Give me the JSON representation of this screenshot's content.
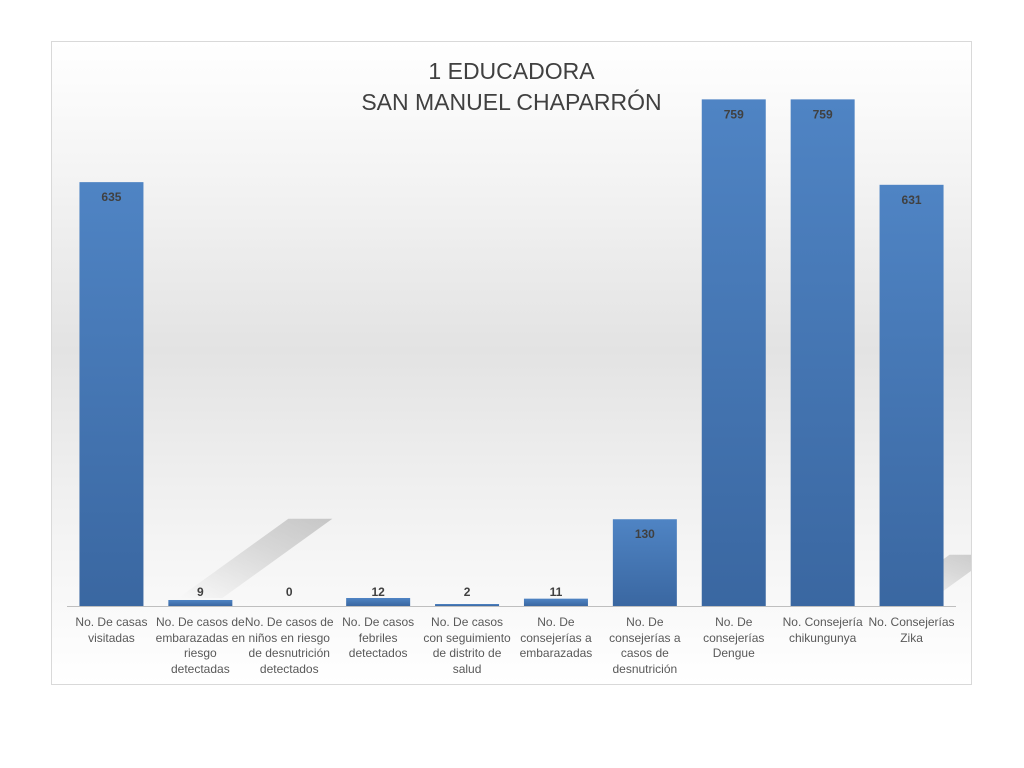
{
  "chart_data": {
    "type": "bar",
    "title": [
      "1 EDUCADORA",
      "SAN MANUEL CHAPARRÓN"
    ],
    "categories": [
      "No. De casas visitadas",
      "No. De casos de embarazadas en riesgo detectadas",
      "No. De casos de niños en riesgo de desnutrición detectados",
      "No. De casos febriles detectados",
      "No. De casos con seguimiento de distrito de salud",
      "No. De consejerías a embarazadas",
      "No. De consejerías a casos de desnutrición",
      "No. De consejerías Dengue",
      "No. Consejería chikungunya",
      "No. Consejerías Zika"
    ],
    "values": [
      635,
      9,
      0,
      12,
      2,
      11,
      130,
      759,
      759,
      631
    ],
    "data_labels": [
      "635",
      "9",
      "0",
      "12",
      "2",
      "11",
      "130",
      "759",
      "759",
      "631"
    ],
    "ylim": [
      0,
      800
    ],
    "grid": false,
    "legend": "none",
    "colors": {
      "bar": "#4a7ebb",
      "bar_dark": "#3a67a1",
      "label": "#404040",
      "axis_text": "#595959"
    }
  }
}
